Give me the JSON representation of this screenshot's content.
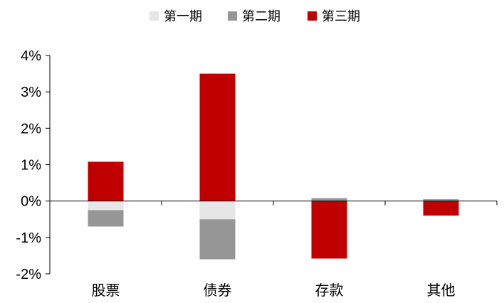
{
  "chart_data": {
    "type": "bar",
    "stacked": true,
    "categories": [
      "股票",
      "债券",
      "存款",
      "其他"
    ],
    "series": [
      {
        "name": "第一期",
        "color": "#e6e6e6",
        "values": [
          -0.25,
          -0.5,
          0.0,
          0.0
        ]
      },
      {
        "name": "第二期",
        "color": "#969696",
        "values": [
          -0.45,
          -1.1,
          0.08,
          0.05
        ]
      },
      {
        "name": "第三期",
        "color": "#c00000",
        "values": [
          1.08,
          3.5,
          -1.58,
          -0.4
        ]
      }
    ],
    "yticks": [
      "4%",
      "3%",
      "2%",
      "1%",
      "0%",
      "-1%",
      "-2%"
    ],
    "ylim": [
      -2,
      4
    ],
    "legend_position": "top-center",
    "grid": false
  }
}
